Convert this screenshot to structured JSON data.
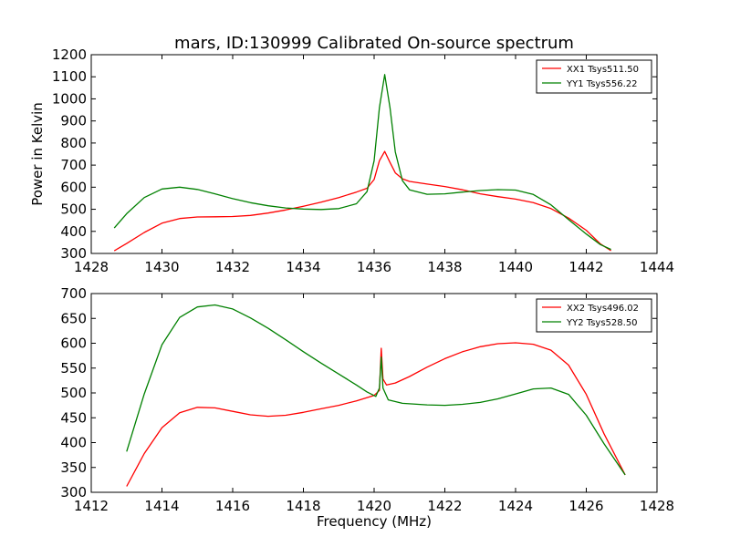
{
  "title": "mars, ID:130999 Calibrated On-source spectrum",
  "chart_data": [
    {
      "type": "line",
      "title": "mars, ID:130999 Calibrated On-source spectrum",
      "xlabel": "",
      "ylabel": "Power in Kelvin",
      "xlim": [
        1428,
        1444
      ],
      "ylim": [
        300,
        1200
      ],
      "xticks": [
        "1428",
        "1430",
        "1432",
        "1434",
        "1436",
        "1438",
        "1440",
        "1442",
        "1444"
      ],
      "yticks": [
        "300",
        "400",
        "500",
        "600",
        "700",
        "800",
        "900",
        "1000",
        "1100",
        "1200"
      ],
      "grid": false,
      "legend": "top-right",
      "series": [
        {
          "name": "XX1 Tsys511.50",
          "color": "#ff0000",
          "points": [
            [
              1428.65,
              312
            ],
            [
              1429.0,
              345
            ],
            [
              1429.5,
              395
            ],
            [
              1430.0,
              437
            ],
            [
              1430.5,
              458
            ],
            [
              1431.0,
              465
            ],
            [
              1431.5,
              466
            ],
            [
              1432.0,
              467
            ],
            [
              1432.5,
              472
            ],
            [
              1433.0,
              483
            ],
            [
              1433.5,
              497
            ],
            [
              1434.0,
              514
            ],
            [
              1434.5,
              532
            ],
            [
              1435.0,
              553
            ],
            [
              1435.5,
              578
            ],
            [
              1435.8,
              595
            ],
            [
              1436.0,
              635
            ],
            [
              1436.15,
              720
            ],
            [
              1436.3,
              762
            ],
            [
              1436.45,
              712
            ],
            [
              1436.6,
              665
            ],
            [
              1436.8,
              638
            ],
            [
              1437.0,
              626
            ],
            [
              1437.5,
              614
            ],
            [
              1438.0,
              603
            ],
            [
              1438.5,
              588
            ],
            [
              1439.0,
              570
            ],
            [
              1439.5,
              557
            ],
            [
              1440.0,
              546
            ],
            [
              1440.5,
              530
            ],
            [
              1441.0,
              503
            ],
            [
              1441.5,
              460
            ],
            [
              1442.0,
              405
            ],
            [
              1442.4,
              343
            ],
            [
              1442.7,
              313
            ]
          ]
        },
        {
          "name": "YY1 Tsys556.22",
          "color": "#008000",
          "points": [
            [
              1428.65,
              415
            ],
            [
              1429.0,
              480
            ],
            [
              1429.5,
              553
            ],
            [
              1430.0,
              592
            ],
            [
              1430.5,
              600
            ],
            [
              1431.0,
              590
            ],
            [
              1431.5,
              570
            ],
            [
              1432.0,
              548
            ],
            [
              1432.5,
              530
            ],
            [
              1433.0,
              516
            ],
            [
              1433.5,
              506
            ],
            [
              1434.0,
              501
            ],
            [
              1434.5,
              499
            ],
            [
              1435.0,
              503
            ],
            [
              1435.5,
              525
            ],
            [
              1435.8,
              580
            ],
            [
              1436.0,
              720
            ],
            [
              1436.15,
              960
            ],
            [
              1436.3,
              1110
            ],
            [
              1436.45,
              960
            ],
            [
              1436.6,
              760
            ],
            [
              1436.8,
              630
            ],
            [
              1437.0,
              588
            ],
            [
              1437.5,
              568
            ],
            [
              1438.0,
              570
            ],
            [
              1438.5,
              578
            ],
            [
              1439.0,
              585
            ],
            [
              1439.5,
              589
            ],
            [
              1440.0,
              587
            ],
            [
              1440.5,
              567
            ],
            [
              1441.0,
              520
            ],
            [
              1441.5,
              453
            ],
            [
              1442.0,
              388
            ],
            [
              1442.4,
              340
            ],
            [
              1442.7,
              318
            ]
          ]
        }
      ]
    },
    {
      "type": "line",
      "title": "",
      "xlabel": "Frequency (MHz)",
      "ylabel": "",
      "xlim": [
        1412,
        1428
      ],
      "ylim": [
        300,
        700
      ],
      "xticks": [
        "1412",
        "1414",
        "1416",
        "1418",
        "1420",
        "1422",
        "1424",
        "1426",
        "1428"
      ],
      "yticks": [
        "300",
        "350",
        "400",
        "450",
        "500",
        "550",
        "600",
        "650",
        "700"
      ],
      "grid": false,
      "legend": "top-right",
      "series": [
        {
          "name": "XX2 Tsys496.02",
          "color": "#ff0000",
          "points": [
            [
              1413.0,
              312
            ],
            [
              1413.5,
              378
            ],
            [
              1414.0,
              430
            ],
            [
              1414.5,
              460
            ],
            [
              1415.0,
              471
            ],
            [
              1415.5,
              470
            ],
            [
              1416.0,
              463
            ],
            [
              1416.5,
              456
            ],
            [
              1417.0,
              453
            ],
            [
              1417.5,
              455
            ],
            [
              1418.0,
              461
            ],
            [
              1418.5,
              468
            ],
            [
              1419.0,
              475
            ],
            [
              1419.5,
              484
            ],
            [
              1420.0,
              495
            ],
            [
              1420.15,
              505
            ],
            [
              1420.2,
              590
            ],
            [
              1420.25,
              528
            ],
            [
              1420.35,
              516
            ],
            [
              1420.6,
              520
            ],
            [
              1421.0,
              533
            ],
            [
              1421.5,
              552
            ],
            [
              1422.0,
              569
            ],
            [
              1422.5,
              583
            ],
            [
              1423.0,
              593
            ],
            [
              1423.5,
              599
            ],
            [
              1424.0,
              601
            ],
            [
              1424.5,
              598
            ],
            [
              1425.0,
              586
            ],
            [
              1425.5,
              556
            ],
            [
              1426.0,
              497
            ],
            [
              1426.5,
              418
            ],
            [
              1427.1,
              335
            ]
          ]
        },
        {
          "name": "YY2 Tsys528.50",
          "color": "#008000",
          "points": [
            [
              1413.0,
              382
            ],
            [
              1413.5,
              498
            ],
            [
              1414.0,
              597
            ],
            [
              1414.5,
              652
            ],
            [
              1415.0,
              673
            ],
            [
              1415.5,
              677
            ],
            [
              1416.0,
              669
            ],
            [
              1416.5,
              651
            ],
            [
              1417.0,
              630
            ],
            [
              1417.5,
              607
            ],
            [
              1418.0,
              583
            ],
            [
              1418.5,
              560
            ],
            [
              1419.0,
              538
            ],
            [
              1419.5,
              516
            ],
            [
              1419.8,
              502
            ],
            [
              1420.05,
              493
            ],
            [
              1420.15,
              510
            ],
            [
              1420.2,
              572
            ],
            [
              1420.25,
              510
            ],
            [
              1420.4,
              486
            ],
            [
              1420.8,
              479
            ],
            [
              1421.5,
              476
            ],
            [
              1422.0,
              475
            ],
            [
              1422.5,
              477
            ],
            [
              1423.0,
              481
            ],
            [
              1423.5,
              488
            ],
            [
              1424.0,
              498
            ],
            [
              1424.5,
              508
            ],
            [
              1425.0,
              510
            ],
            [
              1425.5,
              497
            ],
            [
              1426.0,
              455
            ],
            [
              1426.5,
              398
            ],
            [
              1427.1,
              335
            ]
          ]
        }
      ]
    }
  ]
}
